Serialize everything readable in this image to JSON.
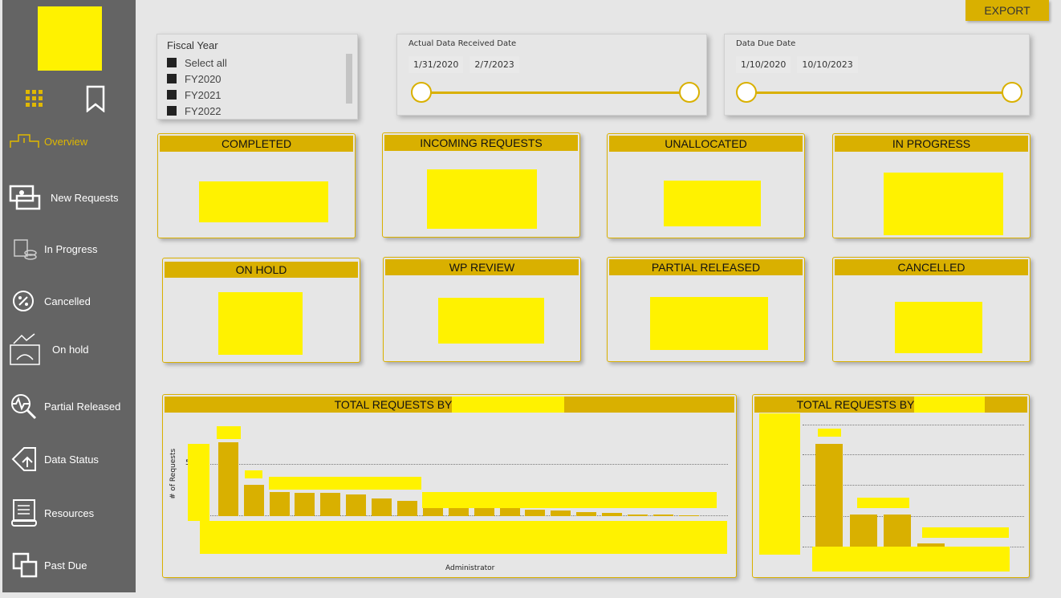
{
  "export": {
    "label": "EXPORT"
  },
  "nav": [
    {
      "label": "Overview",
      "icon": "overview-icon",
      "active": true
    },
    {
      "label": "New Requests",
      "icon": "new-requests-icon"
    },
    {
      "label": "In Progress",
      "icon": "in-progress-icon"
    },
    {
      "label": "Cancelled",
      "icon": "cancelled-icon"
    },
    {
      "label": "On hold",
      "icon": "on-hold-icon"
    },
    {
      "label": "Partial Released",
      "icon": "partial-released-icon"
    },
    {
      "label": "Data Status",
      "icon": "data-status-icon"
    },
    {
      "label": "Resources",
      "icon": "resources-icon"
    },
    {
      "label": "Past Due",
      "icon": "past-due-icon"
    }
  ],
  "fiscal_year": {
    "title": "Fiscal Year",
    "options": [
      "Select all",
      "FY2020",
      "FY2021",
      "FY2022"
    ]
  },
  "received_date": {
    "title": "Actual Data Received Date",
    "start": "1/31/2020",
    "end": "2/7/2023"
  },
  "due_date": {
    "title": "Data Due Date",
    "start": "1/10/2020",
    "end": "10/10/2023"
  },
  "cards": [
    "COMPLETED",
    "INCOMING REQUESTS",
    "UNALLOCATED",
    "IN PROGRESS",
    "ON HOLD",
    "WP REVIEW",
    "PARTIAL RELEASED",
    "CANCELLED"
  ],
  "chart1": {
    "title": "TOTAL REQUESTS BY",
    "ylabel": "# of Requests",
    "xlabel": "Administrator"
  },
  "chart2": {
    "title": "TOTAL REQUESTS BY"
  },
  "colors": {
    "accent": "#d9b000",
    "redaction": "#fff200",
    "sidebar": "#646464"
  }
}
